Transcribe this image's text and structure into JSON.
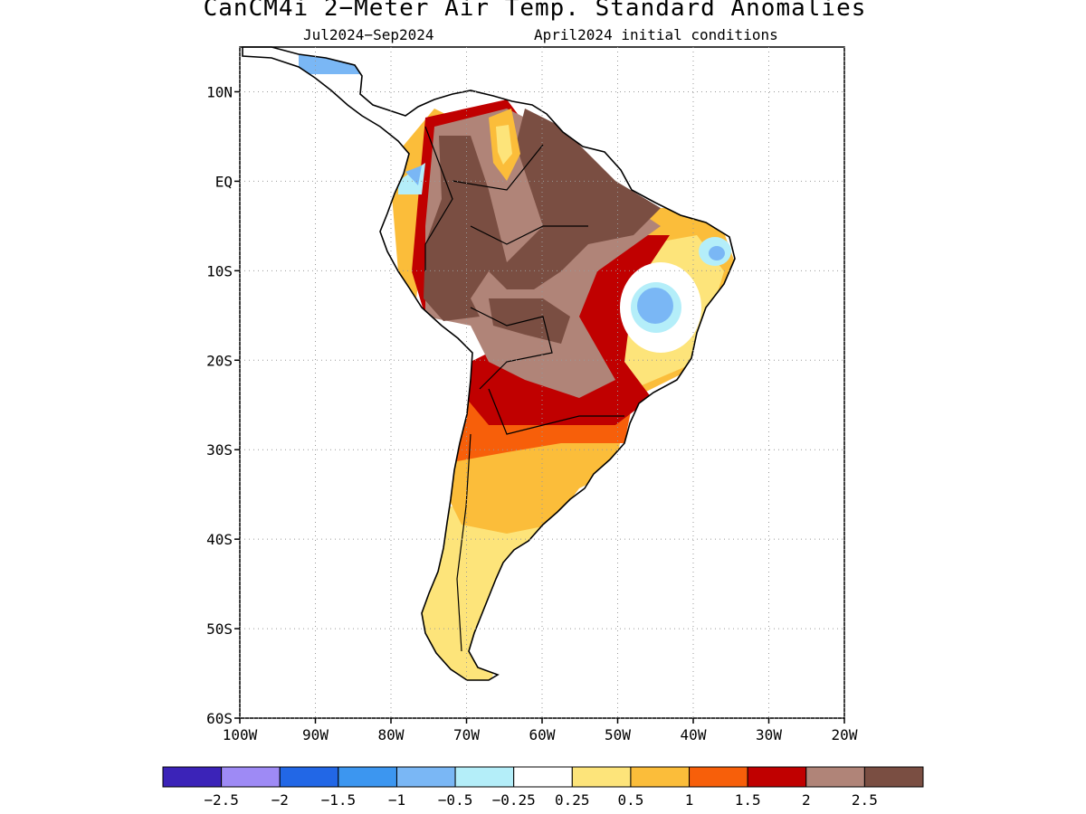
{
  "title": "CanCM4i 2−Meter Air Temp. Standard Anomalies",
  "subtitle_period": "Jul2024−Sep2024",
  "subtitle_init": "April2024 initial conditions",
  "map": {
    "region": "South America",
    "lon_range": [
      -100,
      -20
    ],
    "lat_range": [
      -60,
      15
    ],
    "grid": "dotted",
    "lat_ticks": [
      "10N",
      "EQ",
      "10S",
      "20S",
      "30S",
      "40S",
      "50S",
      "60S"
    ],
    "lon_ticks": [
      "100W",
      "90W",
      "80W",
      "70W",
      "60W",
      "50W",
      "40W",
      "30W",
      "20W"
    ]
  },
  "colorbar": {
    "colors": [
      "#3b23b8",
      "#9e8af5",
      "#2267e6",
      "#3c96f0",
      "#7ab7f5",
      "#b4eef9",
      "#ffffff",
      "#fde47a",
      "#fbbd3a",
      "#f75f0a",
      "#c00000",
      "#b08478",
      "#7a4e42"
    ],
    "labels": [
      "−2.5",
      "−2",
      "−1.5",
      "−1",
      "−0.5",
      "−0.25",
      "0.25",
      "0.5",
      "1",
      "1.5",
      "2",
      "2.5"
    ]
  }
}
